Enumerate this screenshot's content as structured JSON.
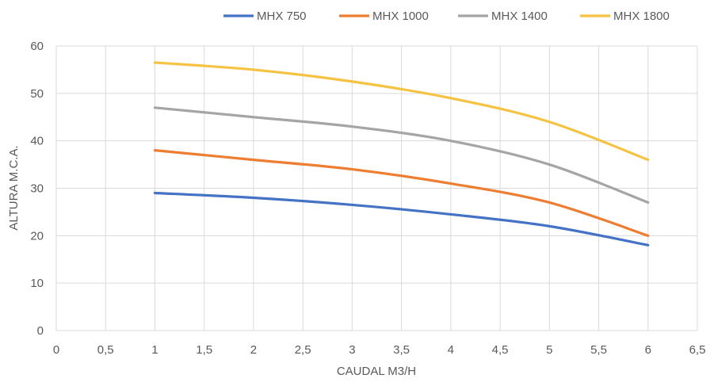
{
  "chart_data": {
    "type": "line",
    "title": "",
    "xlabel": "CAUDAL M3/H",
    "ylabel": "ALTURA M.C.A.",
    "xlim": [
      0,
      6.5
    ],
    "ylim": [
      0,
      60
    ],
    "x_ticks": [
      0,
      0.5,
      1,
      1.5,
      2,
      2.5,
      3,
      3.5,
      4,
      4.5,
      5,
      5.5,
      6,
      6.5
    ],
    "x_tick_labels": [
      "0",
      "0,5",
      "1",
      "1,5",
      "2",
      "2,5",
      "3",
      "3,5",
      "4",
      "4,5",
      "5",
      "5,5",
      "6",
      "6,5"
    ],
    "y_ticks": [
      0,
      10,
      20,
      30,
      40,
      50,
      60
    ],
    "y_tick_labels": [
      "0",
      "10",
      "20",
      "30",
      "40",
      "50",
      "60"
    ],
    "grid": true,
    "legend_position": "top",
    "x": [
      1,
      2,
      3,
      4,
      5,
      6
    ],
    "series": [
      {
        "name": "MHX 750",
        "color": "#4472c4",
        "values": [
          29,
          28,
          26.5,
          24.5,
          22,
          18
        ]
      },
      {
        "name": "MHX 1000",
        "color": "#ed7d31",
        "values": [
          38,
          36,
          34,
          31,
          27,
          20
        ]
      },
      {
        "name": "MHX 1400",
        "color": "#a5a5a5",
        "values": [
          47,
          45,
          43,
          40,
          35,
          27
        ]
      },
      {
        "name": "MHX 1800",
        "color": "#f5c242",
        "values": [
          56.5,
          55,
          52.5,
          49,
          44,
          36
        ]
      }
    ]
  }
}
